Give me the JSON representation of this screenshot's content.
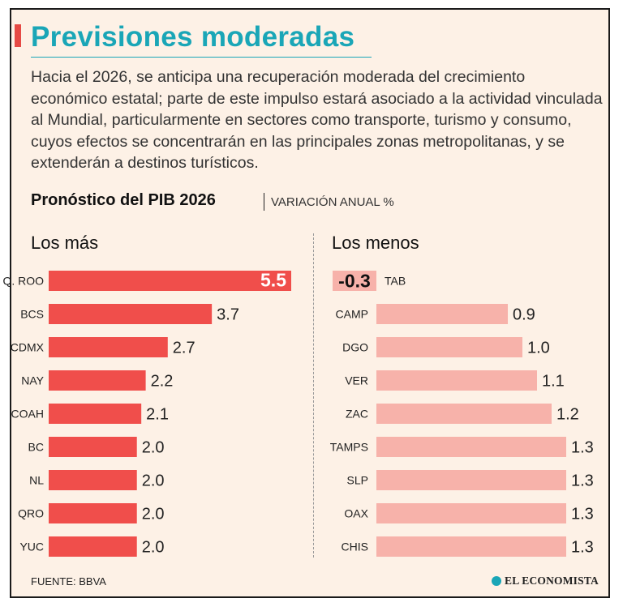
{
  "title": "Previsiones moderadas",
  "description": "Hacia el 2026, se anticipa una recuperación moderada del crecimiento económico estatal; parte de este impulso estará asociado a la actividad vinculada al Mundial, particularmente en sectores como transporte, turismo y consumo, cuyos efectos se concentrarán en las principales zonas metropolitanas, y se extenderán a destinos turísticos.",
  "subtitle": "Pronóstico del PIB 2026",
  "subtitle_unit": "VARIACIÓN ANUAL %",
  "source": "FUENTE: BBVA",
  "logo_text": "EL ECONOMISTA",
  "colors": {
    "title": "#1aa6b7",
    "left_bar": "#f04e4b",
    "right_bar": "#f7b2aa",
    "background": "#fdf1e6"
  },
  "chart_data": [
    {
      "type": "bar",
      "title": "Los más",
      "orientation": "horizontal",
      "categories": [
        "Q. ROO",
        "BCS",
        "CDMX",
        "NAY",
        "COAH",
        "BC",
        "NL",
        "QRO",
        "YUC"
      ],
      "values": [
        5.5,
        3.7,
        2.7,
        2.2,
        2.1,
        2.0,
        2.0,
        2.0,
        2.0
      ],
      "value_labels": [
        "5.5",
        "3.7",
        "2.7",
        "2.2",
        "2.1",
        "2.0",
        "2.0",
        "2.0",
        "2.0"
      ],
      "xlim": [
        0,
        5.5
      ]
    },
    {
      "type": "bar",
      "title": "Los menos",
      "orientation": "horizontal",
      "categories": [
        "TAB",
        "CAMP",
        "DGO",
        "VER",
        "ZAC",
        "TAMPS",
        "SLP",
        "OAX",
        "CHIS"
      ],
      "values": [
        -0.3,
        0.9,
        1.0,
        1.1,
        1.2,
        1.3,
        1.3,
        1.3,
        1.3
      ],
      "value_labels": [
        "-0.3",
        "0.9",
        "1.0",
        "1.1",
        "1.2",
        "1.3",
        "1.3",
        "1.3",
        "1.3"
      ],
      "xlim": [
        -0.3,
        1.3
      ]
    }
  ]
}
